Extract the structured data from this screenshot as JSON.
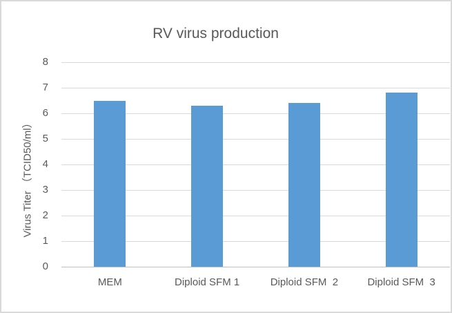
{
  "chart_data": {
    "type": "bar",
    "title": "RV virus production",
    "categories": [
      "MEM",
      "Diploid SFM 1",
      "Diploid SFM  2",
      "Diploid SFM  3"
    ],
    "values": [
      6.5,
      6.3,
      6.4,
      6.8
    ],
    "xlabel": "",
    "ylabel": "Virus Titer （TCID50/ml）",
    "ylim": [
      0,
      8
    ],
    "ytick_step": 1,
    "yticks": [
      0,
      1,
      2,
      3,
      4,
      5,
      6,
      7,
      8
    ],
    "grid": "horizontal",
    "legend": "none",
    "colors": {
      "bar": "#5b9bd5",
      "text": "#595959",
      "gridline": "#d9d9d9",
      "axis_line": "#bfbfbf",
      "border": "#d9d9d9"
    }
  }
}
